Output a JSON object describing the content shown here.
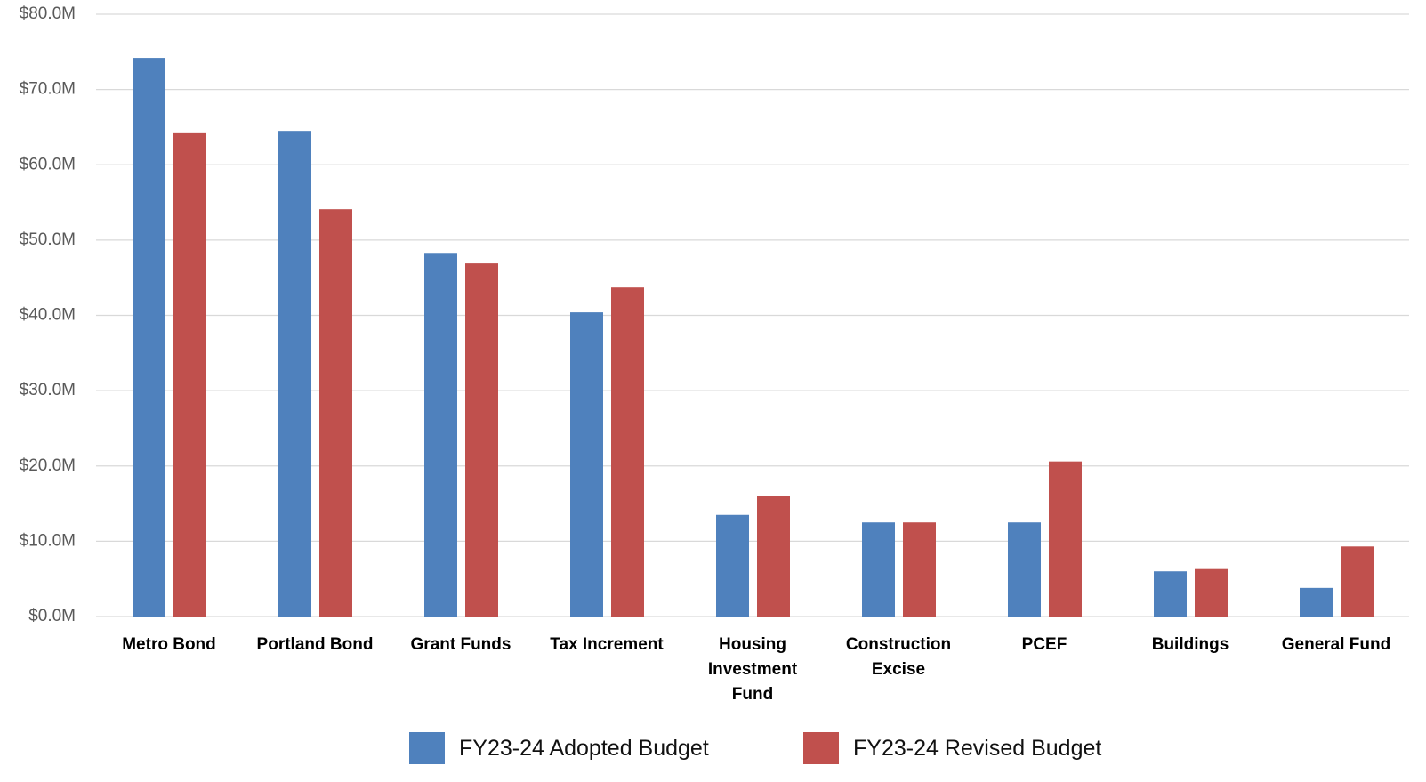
{
  "chart_data": {
    "type": "bar",
    "categories": [
      "Metro Bond",
      "Portland Bond",
      "Grant Funds",
      "Tax Increment",
      "Housing Investment Fund",
      "Construction Excise",
      "PCEF",
      "Buildings",
      "General Fund"
    ],
    "series": [
      {
        "name": "FY23-24 Adopted Budget",
        "color": "#4f81bd",
        "values": [
          74.2,
          64.5,
          48.3,
          40.4,
          13.5,
          12.5,
          12.5,
          6.0,
          3.8
        ]
      },
      {
        "name": "FY23-24 Revised Budget",
        "color": "#c0504d",
        "values": [
          64.3,
          54.1,
          46.9,
          43.7,
          16.0,
          12.5,
          20.6,
          6.3,
          9.3
        ]
      }
    ],
    "ylim": [
      0,
      80
    ],
    "yticks": [
      {
        "value": 0,
        "label": "$0.0M"
      },
      {
        "value": 10,
        "label": "$10.0M"
      },
      {
        "value": 20,
        "label": "$20.0M"
      },
      {
        "value": 30,
        "label": "$30.0M"
      },
      {
        "value": 40,
        "label": "$40.0M"
      },
      {
        "value": 50,
        "label": "$50.0M"
      },
      {
        "value": 60,
        "label": "$60.0M"
      },
      {
        "value": 70,
        "label": "$70.0M"
      },
      {
        "value": 80,
        "label": "$80.0M"
      }
    ],
    "grid": true
  }
}
